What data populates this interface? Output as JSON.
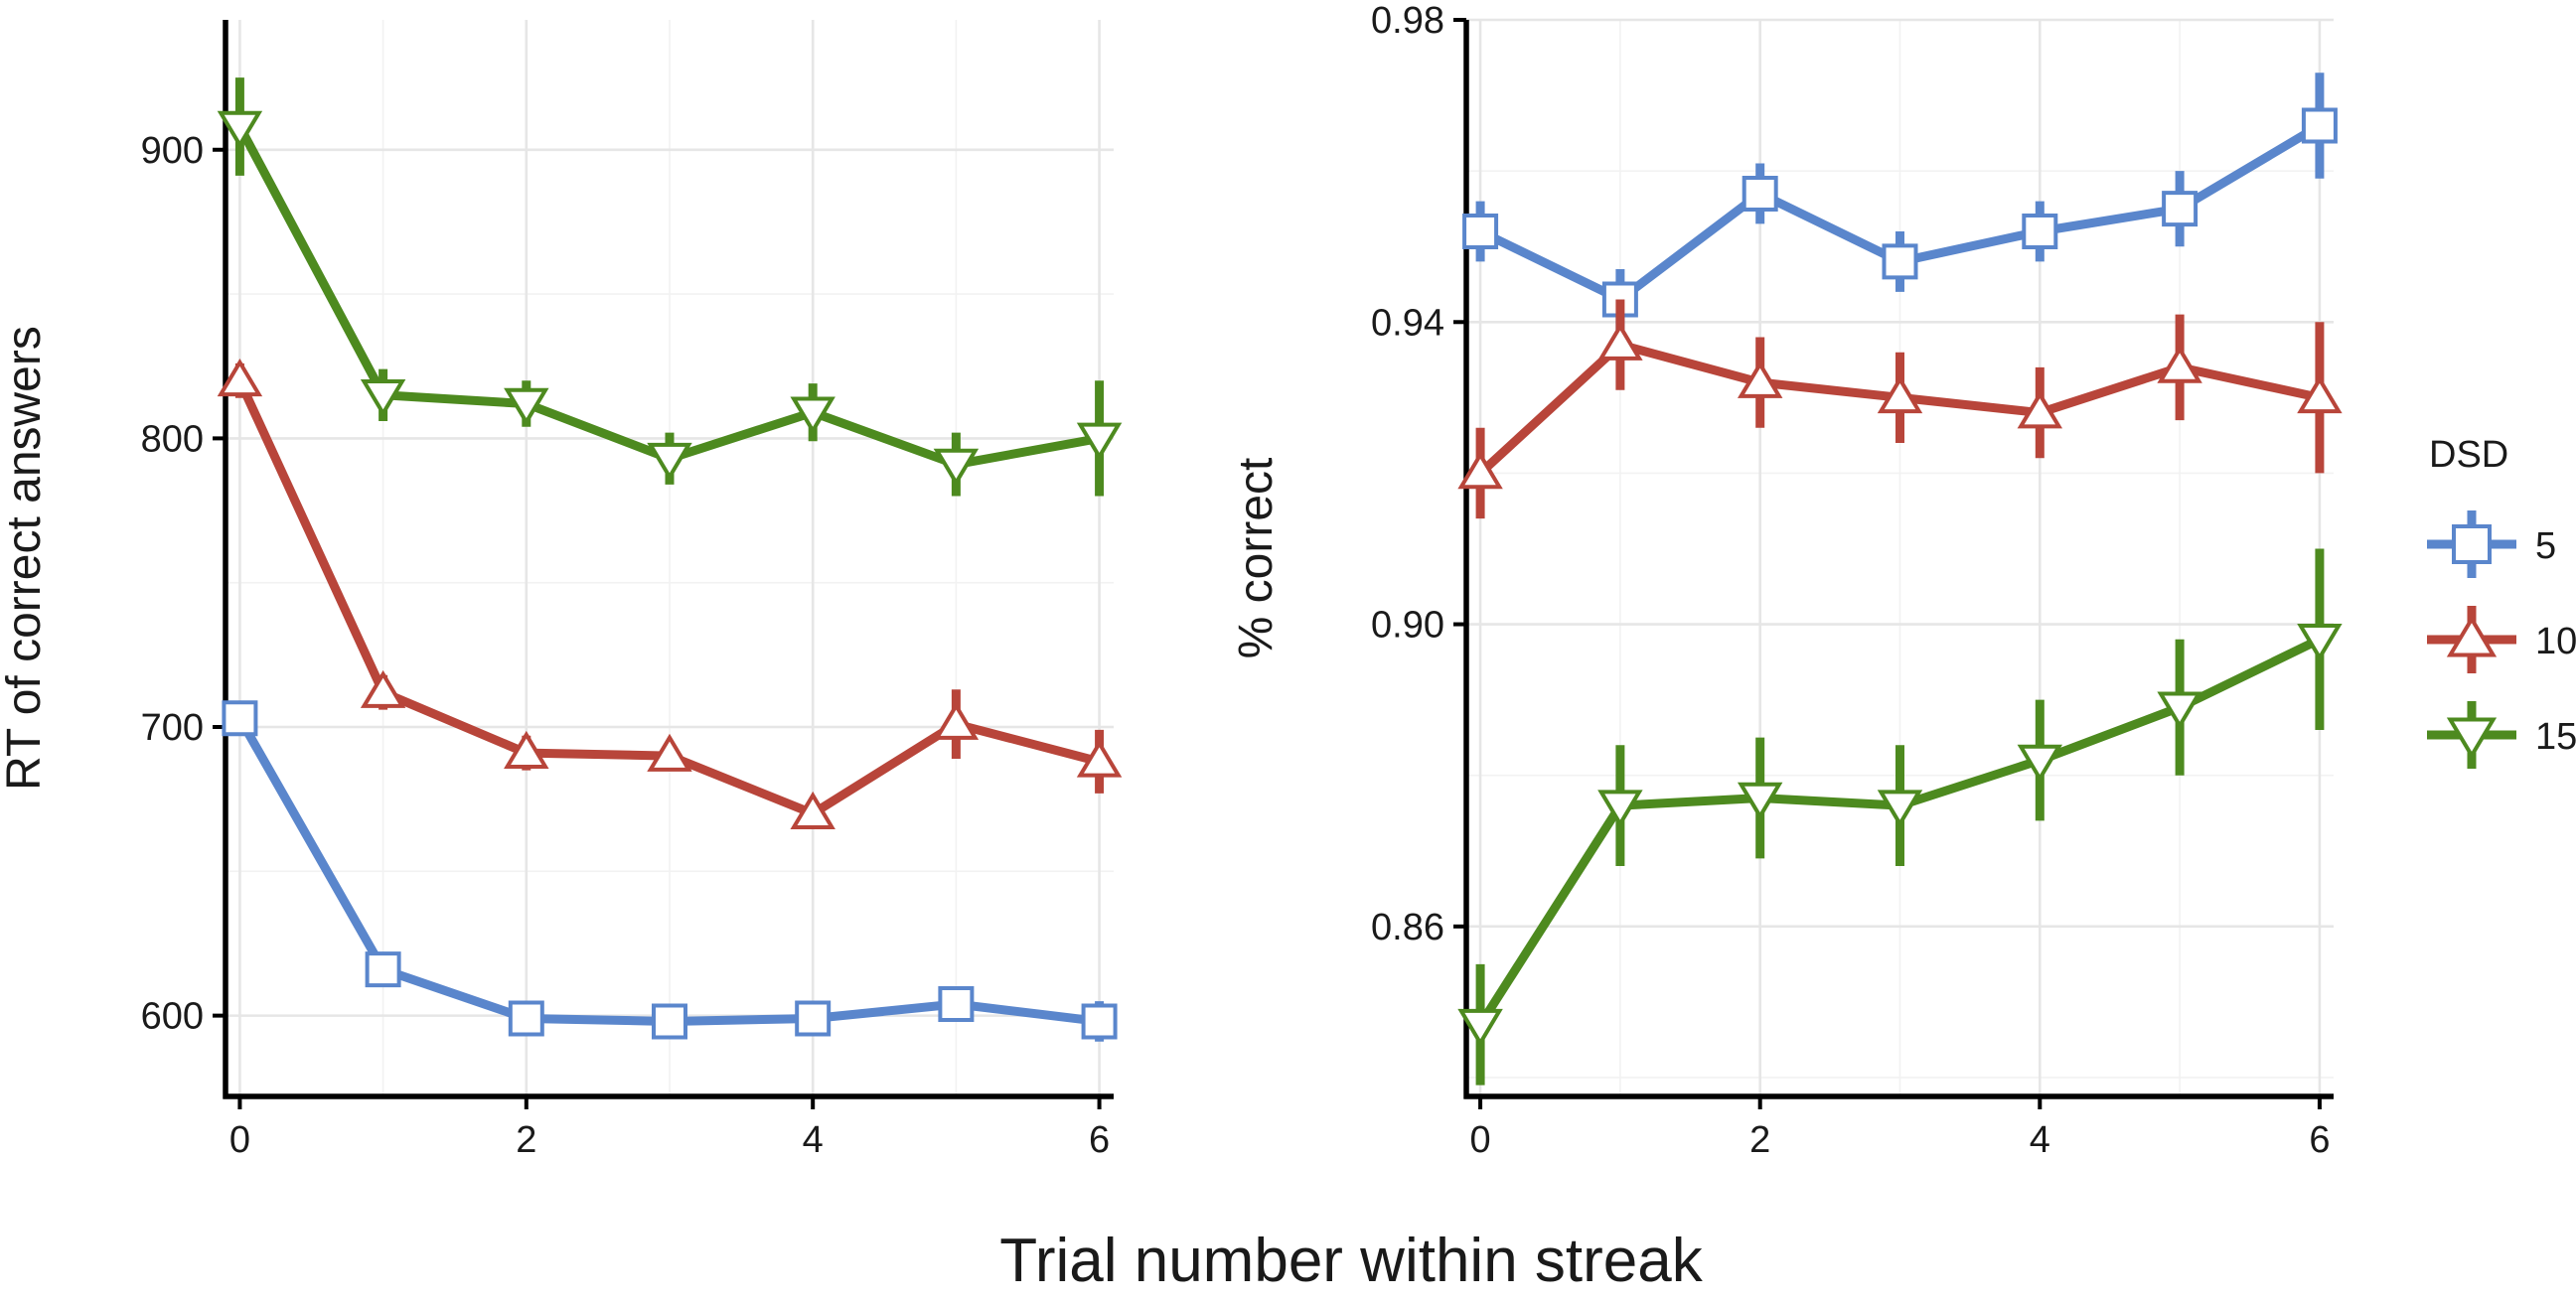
{
  "figure": {
    "xlabel": "Trial number within streak"
  },
  "colors": {
    "dsd5": "#5a86cc",
    "dsd10": "#b8453a",
    "dsd15": "#4d8a1f"
  },
  "legend": {
    "title": "DSD",
    "placement": "right",
    "entries": [
      {
        "label": "5",
        "marker": "square",
        "color": "#5a86cc"
      },
      {
        "label": "10",
        "marker": "triangle-up",
        "color": "#b8453a"
      },
      {
        "label": "15",
        "marker": "triangle-down",
        "color": "#4d8a1f"
      }
    ]
  },
  "chart_data": [
    {
      "type": "line",
      "ylabel": "RT of correct answers",
      "xlim": [
        -0.1,
        6.1
      ],
      "ylim": [
        572,
        945
      ],
      "xticks": [
        0,
        2,
        4,
        6
      ],
      "xtick_labels": [
        "0",
        "2",
        "4",
        "6"
      ],
      "yticks": [
        600,
        700,
        800,
        900
      ],
      "ytick_labels": [
        "600",
        "700",
        "800",
        "900"
      ],
      "grid": true,
      "x": [
        0,
        1,
        2,
        3,
        4,
        5,
        6
      ],
      "series": [
        {
          "name": "5",
          "marker": "square",
          "color": "#5a86cc",
          "values": [
            703,
            616,
            599,
            598,
            599,
            604,
            598
          ],
          "err": [
            3,
            4,
            4,
            3,
            3,
            4,
            7
          ]
        },
        {
          "name": "10",
          "marker": "triangle-up",
          "color": "#b8453a",
          "values": [
            820,
            712,
            691,
            690,
            670,
            701,
            688
          ],
          "err": [
            6,
            6,
            6,
            5,
            5,
            12,
            11
          ]
        },
        {
          "name": "15",
          "marker": "triangle-down",
          "color": "#4d8a1f",
          "values": [
            908,
            815,
            812,
            793,
            809,
            791,
            800
          ],
          "err": [
            17,
            9,
            8,
            9,
            10,
            11,
            20
          ]
        }
      ]
    },
    {
      "type": "line",
      "ylabel": "% correct",
      "xlim": [
        -0.1,
        6.1
      ],
      "ylim": [
        0.8375,
        0.98
      ],
      "xticks": [
        0,
        2,
        4,
        6
      ],
      "xtick_labels": [
        "0",
        "2",
        "4",
        "6"
      ],
      "yticks": [
        0.86,
        0.9,
        0.94,
        0.98
      ],
      "ytick_labels": [
        "0.86",
        "0.90",
        "0.94",
        "0.98"
      ],
      "grid": true,
      "x": [
        0,
        1,
        2,
        3,
        4,
        5,
        6
      ],
      "series": [
        {
          "name": "5",
          "marker": "square",
          "color": "#5a86cc",
          "values": [
            0.952,
            0.943,
            0.957,
            0.948,
            0.952,
            0.955,
            0.966
          ],
          "err": [
            0.004,
            0.004,
            0.004,
            0.004,
            0.004,
            0.005,
            0.007
          ]
        },
        {
          "name": "10",
          "marker": "triangle-up",
          "color": "#b8453a",
          "values": [
            0.92,
            0.937,
            0.932,
            0.93,
            0.928,
            0.934,
            0.93
          ],
          "err": [
            0.006,
            0.006,
            0.006,
            0.006,
            0.006,
            0.007,
            0.01
          ]
        },
        {
          "name": "15",
          "marker": "triangle-down",
          "color": "#4d8a1f",
          "values": [
            0.847,
            0.876,
            0.877,
            0.876,
            0.882,
            0.889,
            0.898
          ],
          "err": [
            0.008,
            0.008,
            0.008,
            0.008,
            0.008,
            0.009,
            0.012
          ]
        }
      ]
    }
  ]
}
